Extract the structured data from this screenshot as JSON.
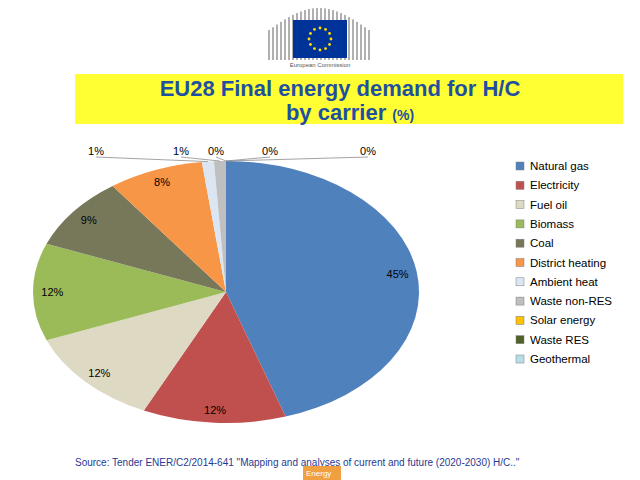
{
  "chart_data": {
    "type": "pie",
    "title": "EU28 Final energy demand for H/C by carrier (%)",
    "categories": [
      "Natural gas",
      "Electricity",
      "Fuel oil",
      "Biomass",
      "Coal",
      "District heating",
      "Ambient heat",
      "Waste non-RES",
      "Solar energy",
      "Waste RES",
      "Geothermal"
    ],
    "values": [
      45,
      12,
      12,
      12,
      9,
      8,
      1,
      1,
      0,
      0,
      0
    ],
    "value_labels": [
      "45%",
      "12%",
      "12%",
      "12%",
      "9%",
      "8%",
      "1%",
      "1%",
      "0%",
      "0%",
      "0%"
    ],
    "colors": [
      "#4f81bd",
      "#c0504d",
      "#ddd9c3",
      "#9bbb59",
      "#77785a",
      "#f79646",
      "#dce6f2",
      "#bfbfbf",
      "#ffc000",
      "#4f6228",
      "#b7dee8"
    ],
    "data_labels": true,
    "legend": "right",
    "annotations": [
      "Source: Tender ENER/C2/2014-641 \"Mapping and analyses of current and future (2020-2030) H/C..\"",
      "Energy",
      "European Commission"
    ]
  }
}
